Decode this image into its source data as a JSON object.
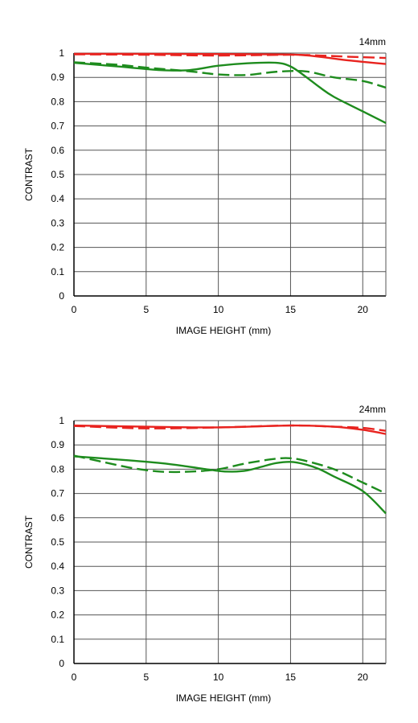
{
  "chart_data": [
    {
      "type": "line",
      "title": "14mm",
      "xlabel": "IMAGE HEIGHT (mm)",
      "ylabel": "CONTRAST",
      "xlim": [
        0,
        21.6
      ],
      "ylim": [
        0,
        1
      ],
      "x_ticks": [
        0,
        5,
        10,
        15,
        20
      ],
      "y_ticks": [
        0,
        0.1,
        0.2,
        0.3,
        0.4,
        0.5,
        0.6,
        0.7,
        0.8,
        0.9,
        1
      ],
      "y_tick_labels": [
        "0",
        "0.1",
        "0.2",
        "0.3",
        "0.4",
        "0.5",
        "0.6",
        "0.7",
        "0.8",
        "0.9",
        "1"
      ],
      "grid": true,
      "series": [
        {
          "color": "#e8231f",
          "dash": "solid",
          "x": [
            0,
            5,
            10,
            15,
            17,
            19,
            21.6
          ],
          "values": [
            0.997,
            0.997,
            0.996,
            0.994,
            0.985,
            0.97,
            0.955
          ]
        },
        {
          "color": "#e8231f",
          "dash": "dashed",
          "x": [
            0,
            5,
            10,
            15,
            17,
            19,
            21.6
          ],
          "values": [
            0.995,
            0.993,
            0.99,
            0.993,
            0.99,
            0.985,
            0.98
          ]
        },
        {
          "color": "#1e8c1e",
          "dash": "solid",
          "x": [
            0,
            3,
            6,
            8,
            10,
            12,
            14,
            15,
            16,
            17,
            18,
            20,
            21.6
          ],
          "values": [
            0.96,
            0.945,
            0.93,
            0.93,
            0.948,
            0.958,
            0.96,
            0.945,
            0.905,
            0.86,
            0.82,
            0.76,
            0.712
          ]
        },
        {
          "color": "#1e8c1e",
          "dash": "dashed",
          "x": [
            0,
            3,
            5,
            8,
            10,
            12,
            14,
            16,
            18,
            20,
            21.6
          ],
          "values": [
            0.962,
            0.952,
            0.94,
            0.925,
            0.912,
            0.91,
            0.923,
            0.925,
            0.9,
            0.885,
            0.858
          ]
        }
      ]
    },
    {
      "type": "line",
      "title": "24mm",
      "xlabel": "IMAGE HEIGHT (mm)",
      "ylabel": "CONTRAST",
      "xlim": [
        0,
        21.6
      ],
      "ylim": [
        0,
        1
      ],
      "x_ticks": [
        0,
        5,
        10,
        15,
        20
      ],
      "y_ticks": [
        0,
        0.1,
        0.2,
        0.3,
        0.4,
        0.5,
        0.6,
        0.7,
        0.8,
        0.9,
        1
      ],
      "y_tick_labels": [
        "0",
        "0.1",
        "0.2",
        "0.3",
        "0.4",
        "0.5",
        "0.6",
        "0.7",
        "0.8",
        "0.9",
        "1"
      ],
      "grid": true,
      "series": [
        {
          "color": "#e8231f",
          "dash": "solid",
          "x": [
            0,
            5,
            10,
            15,
            18,
            20,
            21.6
          ],
          "values": [
            0.98,
            0.975,
            0.972,
            0.98,
            0.975,
            0.962,
            0.945
          ]
        },
        {
          "color": "#e8231f",
          "dash": "dashed",
          "x": [
            0,
            5,
            10,
            15,
            18,
            20,
            21.6
          ],
          "values": [
            0.978,
            0.968,
            0.972,
            0.98,
            0.975,
            0.97,
            0.958
          ]
        },
        {
          "color": "#1e8c1e",
          "dash": "solid",
          "x": [
            0,
            3,
            6,
            8,
            10,
            11,
            12,
            13,
            14,
            15,
            16,
            17,
            18,
            20,
            21.6
          ],
          "values": [
            0.853,
            0.84,
            0.825,
            0.81,
            0.793,
            0.79,
            0.795,
            0.81,
            0.825,
            0.83,
            0.82,
            0.8,
            0.77,
            0.71,
            0.618
          ]
        },
        {
          "color": "#1e8c1e",
          "dash": "dashed",
          "x": [
            0,
            2,
            4,
            6,
            8,
            10,
            12,
            14,
            15,
            16,
            18,
            20,
            21.6
          ],
          "values": [
            0.856,
            0.83,
            0.805,
            0.79,
            0.79,
            0.8,
            0.825,
            0.843,
            0.845,
            0.835,
            0.8,
            0.745,
            0.7
          ]
        }
      ]
    }
  ]
}
